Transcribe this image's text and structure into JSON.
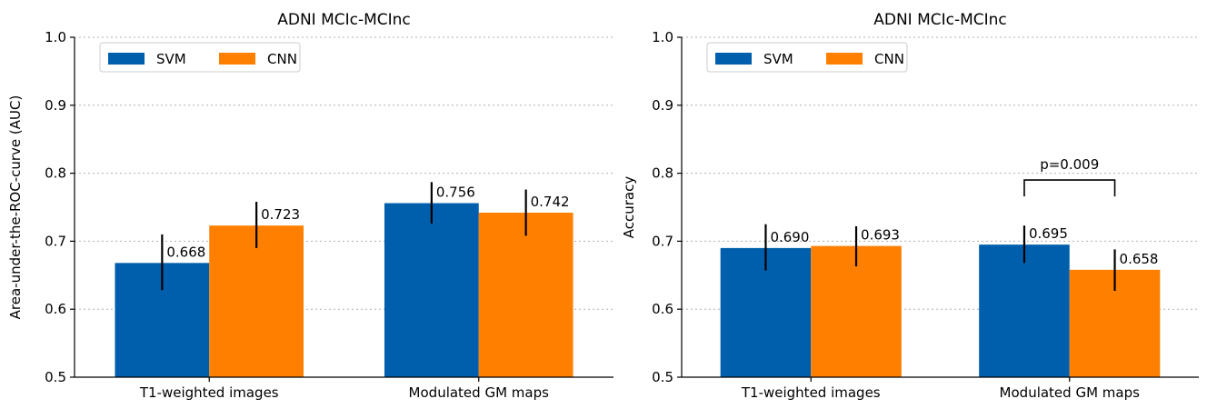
{
  "colors": {
    "svm": "#005fad",
    "cnn": "#ff7f00"
  },
  "chart_data": [
    {
      "type": "bar",
      "title": "ADNI MCIc-MCInc",
      "ylabel": "Area-under-the-ROC-curve (AUC)",
      "xlabel": "",
      "ylim": [
        0.5,
        1.0
      ],
      "yticks": [
        "0.5",
        "0.6",
        "0.7",
        "0.8",
        "0.9",
        "1.0"
      ],
      "grid": true,
      "legend_position": "top-left",
      "categories": [
        "T1-weighted images",
        "Modulated GM maps"
      ],
      "series": [
        {
          "name": "SVM",
          "values": [
            0.668,
            0.756
          ],
          "labels": [
            "0.668",
            "0.756"
          ],
          "err_low": [
            0.628,
            0.726
          ],
          "err_high": [
            0.71,
            0.787
          ]
        },
        {
          "name": "CNN",
          "values": [
            0.723,
            0.742
          ],
          "labels": [
            "0.723",
            "0.742"
          ],
          "err_low": [
            0.69,
            0.708
          ],
          "err_high": [
            0.758,
            0.776
          ]
        }
      ],
      "annotation": null
    },
    {
      "type": "bar",
      "title": "ADNI MCIc-MCInc",
      "ylabel": "Accuracy",
      "xlabel": "",
      "ylim": [
        0.5,
        1.0
      ],
      "yticks": [
        "0.5",
        "0.6",
        "0.7",
        "0.8",
        "0.9",
        "1.0"
      ],
      "grid": true,
      "legend_position": "top-left",
      "categories": [
        "T1-weighted images",
        "Modulated GM maps"
      ],
      "series": [
        {
          "name": "SVM",
          "values": [
            0.69,
            0.695
          ],
          "labels": [
            "0.690",
            "0.695"
          ],
          "err_low": [
            0.657,
            0.668
          ],
          "err_high": [
            0.725,
            0.723
          ]
        },
        {
          "name": "CNN",
          "values": [
            0.693,
            0.658
          ],
          "labels": [
            "0.693",
            "0.658"
          ],
          "err_low": [
            0.663,
            0.627
          ],
          "err_high": [
            0.722,
            0.688
          ]
        }
      ],
      "annotation": {
        "text": "p=0.009",
        "category": 1,
        "y": 0.79
      }
    }
  ]
}
